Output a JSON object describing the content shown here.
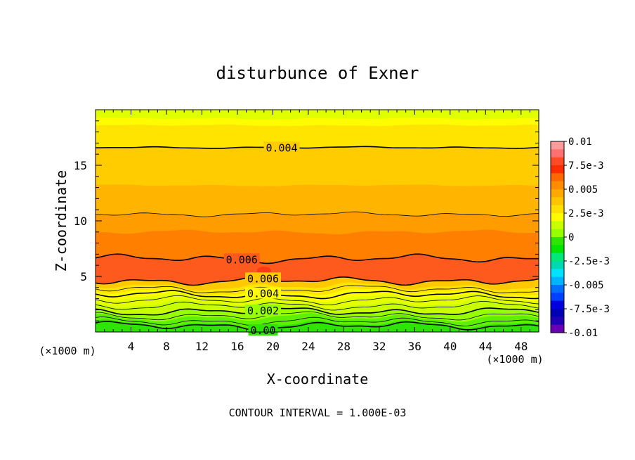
{
  "chart_data": {
    "type": "heatmap",
    "title": "disturbunce of Exner",
    "xlabel": "X-coordinate",
    "ylabel": "Z-coordinate",
    "x_unit": "(×1000 m)",
    "x_unit_right": "(×1000 m)",
    "footer": "CONTOUR INTERVAL = 1.000E-03",
    "xlim": [
      0,
      50
    ],
    "ylim": [
      0,
      20
    ],
    "x_ticks": [
      4,
      8,
      12,
      16,
      20,
      24,
      28,
      32,
      36,
      40,
      44,
      48
    ],
    "x_tick_labels": [
      "4",
      "8",
      "12",
      "16",
      "20",
      "24",
      "28",
      "32",
      "36",
      "40",
      "44",
      "48"
    ],
    "y_ticks": [
      5,
      10,
      15
    ],
    "y_tick_labels": [
      "5",
      "10",
      "15"
    ],
    "colorbar": {
      "range": [
        -0.01,
        0.01
      ],
      "labels": [
        "0.01",
        "7.5e-3",
        "0.005",
        "2.5e-3",
        "0",
        "-2.5e-3",
        "-0.005",
        "-7.5e-3",
        "-0.01"
      ],
      "colors": [
        "#fe9c9c",
        "#ff7070",
        "#fe4a26",
        "#fe2e00",
        "#ff6a00",
        "#ff8c00",
        "#ffa800",
        "#ffc400",
        "#ffe000",
        "#fffc00",
        "#c8ff00",
        "#96ff00",
        "#2ee400",
        "#00e400",
        "#00e878",
        "#00d8b4",
        "#00e4ff",
        "#00b4ff",
        "#0070ff",
        "#0040ff",
        "#0000e0",
        "#0000b4",
        "#2000b4",
        "#6a00b4"
      ]
    },
    "bands": [
      {
        "z_top": 0.7,
        "value": 0.0,
        "color": "#2ee400"
      },
      {
        "z_top": 1.3,
        "value": 0.0005,
        "color": "#5ef000"
      },
      {
        "z_top": 1.9,
        "value": 0.001,
        "color": "#96ff00"
      },
      {
        "z_top": 2.5,
        "value": 0.0015,
        "color": "#c8ff00"
      },
      {
        "z_top": 3.1,
        "value": 0.002,
        "color": "#e4ff00"
      },
      {
        "z_top": 3.6,
        "value": 0.0025,
        "color": "#fffc00"
      },
      {
        "z_top": 4.1,
        "value": 0.003,
        "color": "#ffe400"
      },
      {
        "z_top": 4.6,
        "value": 0.0035,
        "color": "#ffc800"
      },
      {
        "z_top": 6.6,
        "value": 0.0065,
        "color": "#fe5a1e"
      },
      {
        "z_top": 9.0,
        "value": 0.0055,
        "color": "#ff8000"
      },
      {
        "z_top": 10.6,
        "value": 0.005,
        "color": "#ff9c00"
      },
      {
        "z_top": 13.2,
        "value": 0.0045,
        "color": "#ffb400"
      },
      {
        "z_top": 16.6,
        "value": 0.0042,
        "color": "#ffcc00"
      },
      {
        "z_top": 18.6,
        "value": 0.0038,
        "color": "#ffe400"
      },
      {
        "z_top": 19.2,
        "value": 0.0032,
        "color": "#fffc00"
      },
      {
        "z_top": 20.0,
        "value": 0.0028,
        "color": "#e0ff00"
      }
    ],
    "contours": [
      {
        "z": 0.55,
        "bold": true,
        "label": "0.00",
        "label_x": 18.9
      },
      {
        "z": 0.95,
        "bold": false
      },
      {
        "z": 1.45,
        "bold": false
      },
      {
        "z": 1.85,
        "bold": true,
        "label": "0.002",
        "label_x": 18.9
      },
      {
        "z": 2.35,
        "bold": false
      },
      {
        "z": 2.85,
        "bold": false
      },
      {
        "z": 3.35,
        "bold": true,
        "label": "0.004",
        "label_x": 18.9
      },
      {
        "z": 3.85,
        "bold": false
      },
      {
        "z": 4.6,
        "bold": true,
        "label": "0.006",
        "label_x": 18.9
      },
      {
        "z": 6.6,
        "bold": true,
        "label": "0.006",
        "label_x": 16.5
      },
      {
        "z": 10.6,
        "bold": false
      },
      {
        "z": 16.6,
        "bold": true,
        "label": "0.004",
        "label_x": 21.0
      }
    ],
    "blobs": [
      {
        "x": 19.0,
        "z": 5.5,
        "value": 0.0072,
        "color": "#fe3a14"
      }
    ]
  }
}
